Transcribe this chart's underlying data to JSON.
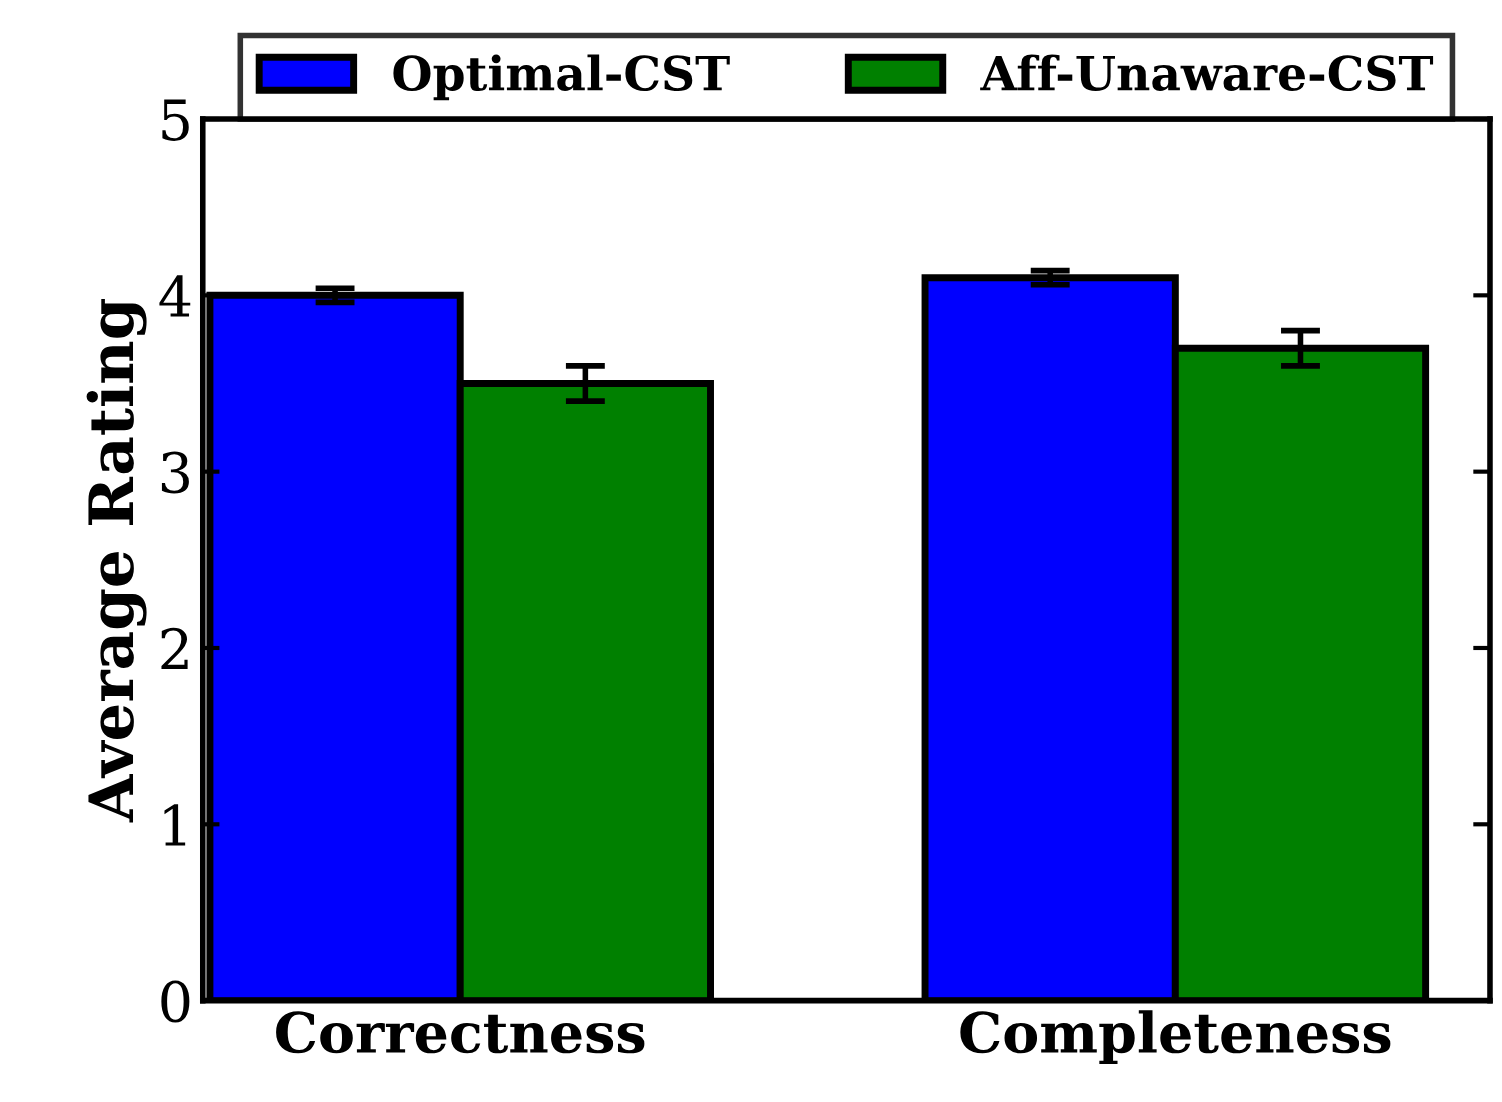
{
  "chart_data": {
    "type": "bar",
    "ylabel": "Average Rating",
    "categories": [
      "Correctness",
      "Completeness"
    ],
    "series": [
      {
        "name": "Optimal-CST",
        "color": "#0000ff",
        "values": [
          4.0,
          4.1
        ],
        "errors": [
          0.04,
          0.04
        ]
      },
      {
        "name": "Aff-Unaware-CST",
        "color": "#008000",
        "values": [
          3.5,
          3.7
        ],
        "errors": [
          0.1,
          0.1
        ]
      }
    ],
    "ylim": [
      0,
      5
    ],
    "yticks": [
      0,
      1,
      2,
      3,
      4,
      5
    ],
    "legend": "top",
    "grid": false
  }
}
